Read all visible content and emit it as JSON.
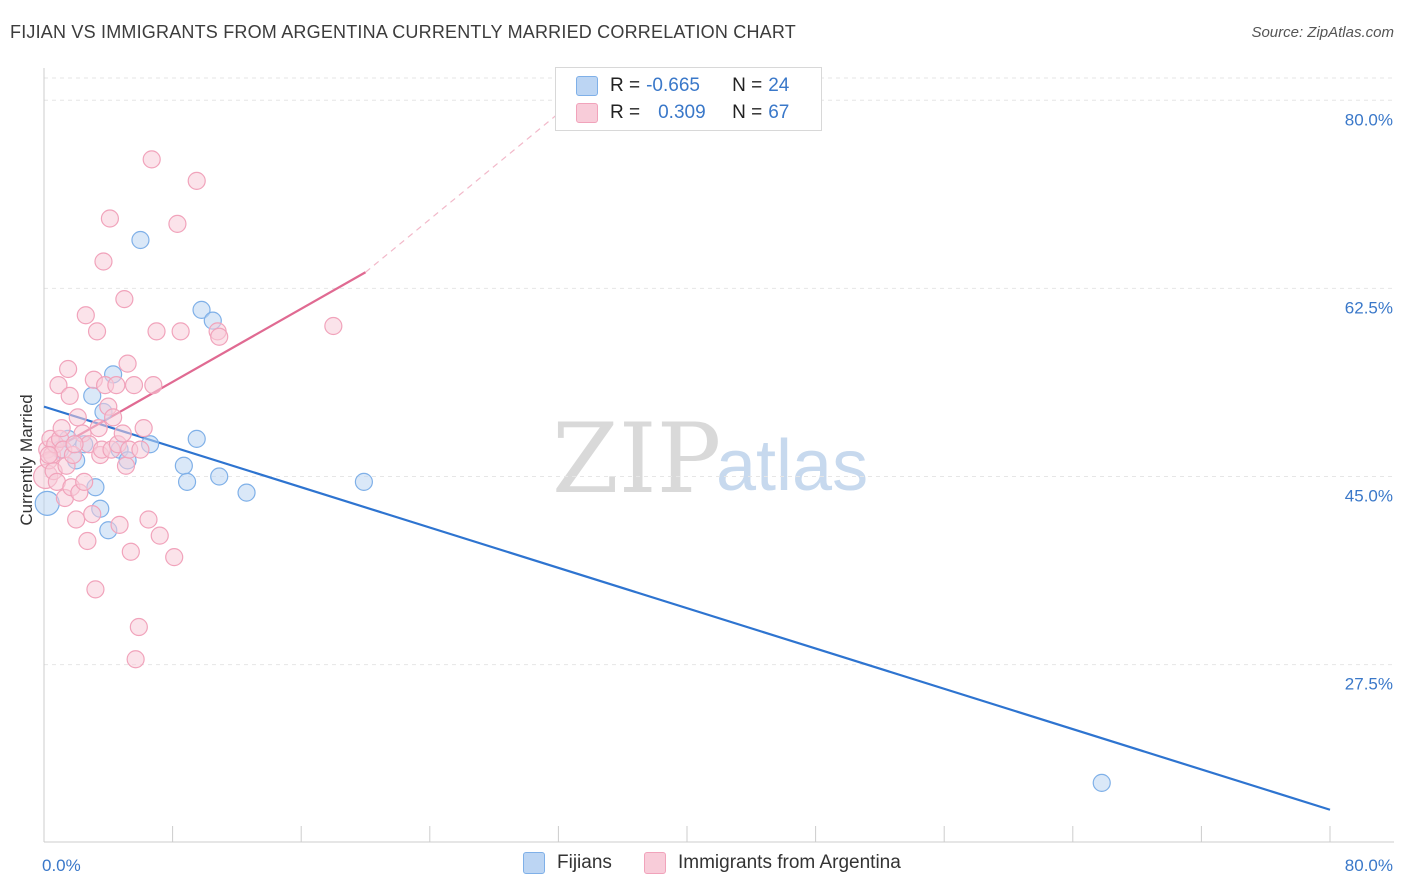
{
  "title": "FIJIAN VS IMMIGRANTS FROM ARGENTINA CURRENTLY MARRIED CORRELATION CHART",
  "source": "Source: ZipAtlas.com",
  "watermark": {
    "zip": "ZIP",
    "atlas": "atlas"
  },
  "legend": {
    "r_label": "R =",
    "n_label": "N =",
    "series": [
      {
        "name": "Fijians",
        "r": "-0.665",
        "n": "24",
        "color": "#7fb0e8",
        "fill": "#bcd5f3",
        "line": "#2e74d0"
      },
      {
        "name": "Immigrants from Argentina",
        "r": "0.309",
        "n": "67",
        "color": "#f1a3bb",
        "fill": "#f8ccd9",
        "line": "#e06a92"
      }
    ]
  },
  "chart_data": {
    "type": "scatter",
    "title": "FIJIAN VS IMMIGRANTS FROM ARGENTINA CURRENTLY MARRIED CORRELATION CHART",
    "xlabel": "",
    "ylabel": "Currently Married",
    "xlim": [
      0,
      80
    ],
    "ylim": [
      11,
      83
    ],
    "x_tick_labels": [
      "0.0%",
      "80.0%"
    ],
    "y_ticks": [
      27.5,
      45.0,
      62.5,
      80.0
    ],
    "y_tick_labels": [
      "27.5%",
      "45.0%",
      "62.5%",
      "80.0%"
    ],
    "grid": true,
    "series": [
      {
        "name": "Fijians",
        "points": [
          [
            0.2,
            42.5
          ],
          [
            1.0,
            47.5
          ],
          [
            1.5,
            48.5
          ],
          [
            2.0,
            46.5
          ],
          [
            2.5,
            48.0
          ],
          [
            3.0,
            52.5
          ],
          [
            3.2,
            44.0
          ],
          [
            3.7,
            51.0
          ],
          [
            3.5,
            42.0
          ],
          [
            4.0,
            40.0
          ],
          [
            4.3,
            54.5
          ],
          [
            4.7,
            47.5
          ],
          [
            5.2,
            46.5
          ],
          [
            6.0,
            67.0
          ],
          [
            6.6,
            48.0
          ],
          [
            8.7,
            46.0
          ],
          [
            8.9,
            44.5
          ],
          [
            9.5,
            48.5
          ],
          [
            9.8,
            60.5
          ],
          [
            10.5,
            59.5
          ],
          [
            10.9,
            45.0
          ],
          [
            12.6,
            43.5
          ],
          [
            19.9,
            44.5
          ],
          [
            65.8,
            16.5
          ]
        ],
        "trend": {
          "x": [
            0,
            80
          ],
          "y": [
            51.5,
            14.0
          ]
        }
      },
      {
        "name": "Immigrants from Argentina",
        "points": [
          [
            0.1,
            45.0
          ],
          [
            0.2,
            47.5
          ],
          [
            0.3,
            46.5
          ],
          [
            0.4,
            48.5
          ],
          [
            0.5,
            47.0
          ],
          [
            0.6,
            45.5
          ],
          [
            0.7,
            48.0
          ],
          [
            0.8,
            44.5
          ],
          [
            0.9,
            53.5
          ],
          [
            1.0,
            48.5
          ],
          [
            1.1,
            49.5
          ],
          [
            1.2,
            47.5
          ],
          [
            1.3,
            43.0
          ],
          [
            1.4,
            46.0
          ],
          [
            1.5,
            55.0
          ],
          [
            1.6,
            52.5
          ],
          [
            1.7,
            44.0
          ],
          [
            1.8,
            47.0
          ],
          [
            2.0,
            41.0
          ],
          [
            2.1,
            50.5
          ],
          [
            2.2,
            43.5
          ],
          [
            2.4,
            49.0
          ],
          [
            2.5,
            44.5
          ],
          [
            2.6,
            60.0
          ],
          [
            2.7,
            39.0
          ],
          [
            2.8,
            48.0
          ],
          [
            3.0,
            41.5
          ],
          [
            3.1,
            54.0
          ],
          [
            3.2,
            34.5
          ],
          [
            3.3,
            58.5
          ],
          [
            3.5,
            47.0
          ],
          [
            3.6,
            47.5
          ],
          [
            3.7,
            65.0
          ],
          [
            3.8,
            53.5
          ],
          [
            4.0,
            51.5
          ],
          [
            4.1,
            69.0
          ],
          [
            4.2,
            47.5
          ],
          [
            4.3,
            50.5
          ],
          [
            4.5,
            53.5
          ],
          [
            4.6,
            48.0
          ],
          [
            4.7,
            40.5
          ],
          [
            4.9,
            49.0
          ],
          [
            5.0,
            61.5
          ],
          [
            5.1,
            46.0
          ],
          [
            5.2,
            55.5
          ],
          [
            5.3,
            47.5
          ],
          [
            5.4,
            38.0
          ],
          [
            5.6,
            53.5
          ],
          [
            5.7,
            28.0
          ],
          [
            5.9,
            31.0
          ],
          [
            6.0,
            47.5
          ],
          [
            6.2,
            49.5
          ],
          [
            6.5,
            41.0
          ],
          [
            6.7,
            74.5
          ],
          [
            6.8,
            53.5
          ],
          [
            7.0,
            58.5
          ],
          [
            7.2,
            39.5
          ],
          [
            8.1,
            37.5
          ],
          [
            8.3,
            68.5
          ],
          [
            8.5,
            58.5
          ],
          [
            9.5,
            72.5
          ],
          [
            10.8,
            58.5
          ],
          [
            10.9,
            58.0
          ],
          [
            18.0,
            59.0
          ],
          [
            0.3,
            47.0
          ],
          [
            1.9,
            48.0
          ],
          [
            3.4,
            49.5
          ]
        ],
        "trend": {
          "x": [
            0,
            20
          ],
          "y": [
            47.0,
            64.0
          ]
        },
        "trend_extension": {
          "x": [
            20,
            33
          ],
          "y": [
            64.0,
            80.0
          ]
        }
      }
    ]
  }
}
